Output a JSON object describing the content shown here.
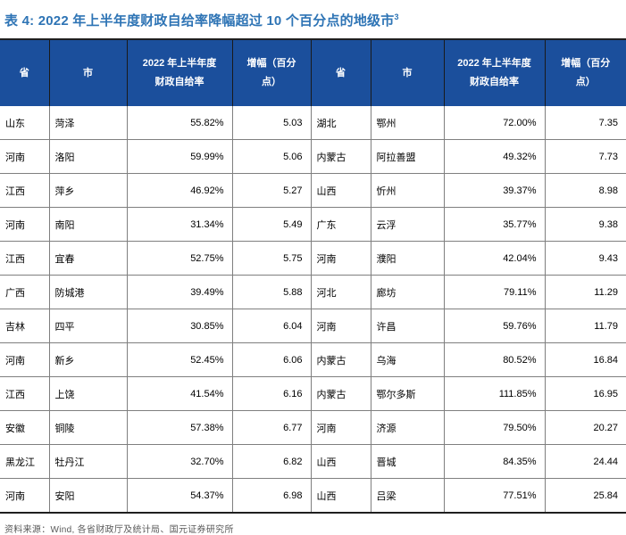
{
  "title": {
    "prefix": "表 4: ",
    "text": "2022 年上半年度财政自给率降幅超过 10 个百分点的地级市",
    "footnote": "3"
  },
  "table": {
    "headers": [
      "省",
      "市",
      "2022 年上半年度\n财政自给率",
      "增幅（百分\n点）",
      "省",
      "市",
      "2022 年上半年度\n财政自给率",
      "增幅（百分\n点）"
    ],
    "rows": [
      [
        "山东",
        "菏泽",
        "55.82%",
        "5.03",
        "湖北",
        "鄂州",
        "72.00%",
        "7.35"
      ],
      [
        "河南",
        "洛阳",
        "59.99%",
        "5.06",
        "内蒙古",
        "阿拉善盟",
        "49.32%",
        "7.73"
      ],
      [
        "江西",
        "萍乡",
        "46.92%",
        "5.27",
        "山西",
        "忻州",
        "39.37%",
        "8.98"
      ],
      [
        "河南",
        "南阳",
        "31.34%",
        "5.49",
        "广东",
        "云浮",
        "35.77%",
        "9.38"
      ],
      [
        "江西",
        "宜春",
        "52.75%",
        "5.75",
        "河南",
        "濮阳",
        "42.04%",
        "9.43"
      ],
      [
        "广西",
        "防城港",
        "39.49%",
        "5.88",
        "河北",
        "廊坊",
        "79.11%",
        "11.29"
      ],
      [
        "吉林",
        "四平",
        "30.85%",
        "6.04",
        "河南",
        "许昌",
        "59.76%",
        "11.79"
      ],
      [
        "河南",
        "新乡",
        "52.45%",
        "6.06",
        "内蒙古",
        "乌海",
        "80.52%",
        "16.84"
      ],
      [
        "江西",
        "上饶",
        "41.54%",
        "6.16",
        "内蒙古",
        "鄂尔多斯",
        "111.85%",
        "16.95"
      ],
      [
        "安徽",
        "铜陵",
        "57.38%",
        "6.77",
        "河南",
        "济源",
        "79.50%",
        "20.27"
      ],
      [
        "黑龙江",
        "牡丹江",
        "32.70%",
        "6.82",
        "山西",
        "晋城",
        "84.35%",
        "24.44"
      ],
      [
        "河南",
        "安阳",
        "54.37%",
        "6.98",
        "山西",
        "吕梁",
        "77.51%",
        "25.84"
      ]
    ]
  },
  "source": "资料来源：Wind, 各省财政厅及统计局、国元证券研究所",
  "colors": {
    "title_color": "#2E74B5",
    "header_bg": "#1B4F9C",
    "header_text": "#FFFFFF",
    "grid": "#7F7F7F",
    "frame": "#1F1F1F",
    "header_divider": "#1A1A1A",
    "source_text": "#595959"
  }
}
